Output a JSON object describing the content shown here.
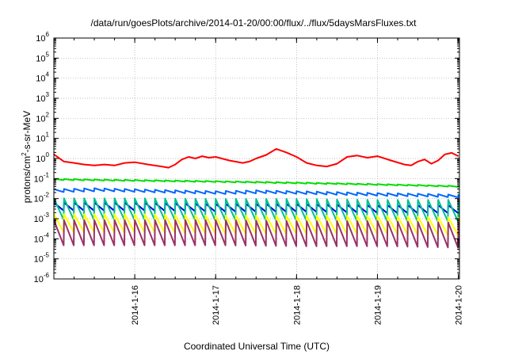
{
  "chart_data": {
    "type": "line",
    "title": "/data/run/goesPlots/archive/2014-01-20/00:00/flux/../flux/5daysMarsFluxes.txt",
    "xlabel": "Coordinated Universal Time (UTC)",
    "ylabel_pre": "protons/cm",
    "ylabel_sup": "2",
    "ylabel_post": "-s-sr-MeV",
    "xlim": [
      "2014-01-15 00:00",
      "2014-01-20 00:20"
    ],
    "ylim": [
      1e-06,
      1000000.0
    ],
    "yscale": "log",
    "grid": true,
    "legend": "none",
    "x_ticks": [
      "2014-1-16",
      "2014-1-17",
      "2014-1-18",
      "2014-1-19",
      "2014-1-20"
    ],
    "y_ticks": [
      {
        "base": "10",
        "exp": "-6"
      },
      {
        "base": "10",
        "exp": "-5"
      },
      {
        "base": "10",
        "exp": "-4"
      },
      {
        "base": "10",
        "exp": "-3"
      },
      {
        "base": "10",
        "exp": "-2"
      },
      {
        "base": "10",
        "exp": "-1"
      },
      {
        "base": "10",
        "exp": "0"
      },
      {
        "base": "10",
        "exp": "1"
      },
      {
        "base": "10",
        "exp": "2"
      },
      {
        "base": "10",
        "exp": "3"
      },
      {
        "base": "10",
        "exp": "4"
      },
      {
        "base": "10",
        "exp": "5"
      },
      {
        "base": "10",
        "exp": "6"
      }
    ],
    "series": [
      {
        "color": "#ff0000",
        "points": [
          [
            "2014-01-15 00:00",
            1.6
          ],
          [
            "2014-01-15 03:00",
            0.7
          ],
          [
            "2014-01-15 06:00",
            0.6
          ],
          [
            "2014-01-15 09:00",
            0.5
          ],
          [
            "2014-01-15 12:00",
            0.45
          ],
          [
            "2014-01-15 15:00",
            0.5
          ],
          [
            "2014-01-15 18:00",
            0.45
          ],
          [
            "2014-01-15 21:00",
            0.6
          ],
          [
            "2014-01-16 00:00",
            0.65
          ],
          [
            "2014-01-16 04:00",
            0.5
          ],
          [
            "2014-01-16 08:00",
            0.4
          ],
          [
            "2014-01-16 10:00",
            0.35
          ],
          [
            "2014-01-16 12:00",
            0.5
          ],
          [
            "2014-01-16 14:00",
            0.9
          ],
          [
            "2014-01-16 16:00",
            1.2
          ],
          [
            "2014-01-16 18:00",
            1.0
          ],
          [
            "2014-01-16 20:00",
            1.3
          ],
          [
            "2014-01-16 22:00",
            1.1
          ],
          [
            "2014-01-17 00:00",
            1.2
          ],
          [
            "2014-01-17 04:00",
            0.8
          ],
          [
            "2014-01-17 08:00",
            0.6
          ],
          [
            "2014-01-17 10:00",
            0.7
          ],
          [
            "2014-01-17 12:00",
            1.0
          ],
          [
            "2014-01-17 15:00",
            1.5
          ],
          [
            "2014-01-17 18:00",
            3.0
          ],
          [
            "2014-01-17 21:00",
            2.0
          ],
          [
            "2014-01-18 00:00",
            1.2
          ],
          [
            "2014-01-18 03:00",
            0.6
          ],
          [
            "2014-01-18 06:00",
            0.45
          ],
          [
            "2014-01-18 09:00",
            0.4
          ],
          [
            "2014-01-18 12:00",
            0.55
          ],
          [
            "2014-01-18 15:00",
            1.2
          ],
          [
            "2014-01-18 18:00",
            1.4
          ],
          [
            "2014-01-18 21:00",
            1.1
          ],
          [
            "2014-01-19 00:00",
            1.3
          ],
          [
            "2014-01-19 04:00",
            0.8
          ],
          [
            "2014-01-19 08:00",
            0.5
          ],
          [
            "2014-01-19 10:00",
            0.45
          ],
          [
            "2014-01-19 12:00",
            0.7
          ],
          [
            "2014-01-19 14:00",
            0.9
          ],
          [
            "2014-01-19 16:00",
            0.55
          ],
          [
            "2014-01-19 18:00",
            0.8
          ],
          [
            "2014-01-19 20:00",
            1.6
          ],
          [
            "2014-01-19 22:00",
            1.9
          ],
          [
            "2014-01-20 00:00",
            1.3
          ]
        ]
      },
      {
        "color": "#00dd00",
        "points": [
          [
            "2014-01-15 00:00",
            0.09
          ],
          [
            "2014-01-15 12:00",
            0.085
          ],
          [
            "2014-01-16 00:00",
            0.08
          ],
          [
            "2014-01-16 12:00",
            0.075
          ],
          [
            "2014-01-17 00:00",
            0.07
          ],
          [
            "2014-01-17 12:00",
            0.065
          ],
          [
            "2014-01-18 00:00",
            0.06
          ],
          [
            "2014-01-18 12:00",
            0.055
          ],
          [
            "2014-01-19 00:00",
            0.05
          ],
          [
            "2014-01-19 12:00",
            0.045
          ],
          [
            "2014-01-20 00:00",
            0.04
          ]
        ],
        "sawtooth": 1.15
      },
      {
        "color": "#0066ff",
        "points": [
          [
            "2014-01-15 00:00",
            0.025
          ],
          [
            "2014-01-15 12:00",
            0.028
          ],
          [
            "2014-01-16 00:00",
            0.025
          ],
          [
            "2014-01-16 12:00",
            0.022
          ],
          [
            "2014-01-17 00:00",
            0.02
          ],
          [
            "2014-01-17 12:00",
            0.022
          ],
          [
            "2014-01-18 00:00",
            0.02
          ],
          [
            "2014-01-18 12:00",
            0.018
          ],
          [
            "2014-01-19 00:00",
            0.016
          ],
          [
            "2014-01-19 12:00",
            0.015
          ],
          [
            "2014-01-20 00:00",
            0.013
          ]
        ],
        "sawtooth": 1.4
      },
      {
        "color": "#0000dd",
        "points": [
          [
            "2014-01-15 00:00",
            0.004
          ],
          [
            "2014-01-16 00:00",
            0.004
          ],
          [
            "2014-01-17 00:00",
            0.0035
          ],
          [
            "2014-01-18 00:00",
            0.0035
          ],
          [
            "2014-01-19 00:00",
            0.003
          ],
          [
            "2014-01-20 00:00",
            0.003
          ]
        ],
        "sawtooth": 2.5
      },
      {
        "color": "#00c090",
        "points": [
          [
            "2014-01-15 00:00",
            0.003
          ],
          [
            "2014-01-16 00:00",
            0.003
          ],
          [
            "2014-01-17 00:00",
            0.0028
          ],
          [
            "2014-01-18 00:00",
            0.0028
          ],
          [
            "2014-01-19 00:00",
            0.0025
          ],
          [
            "2014-01-20 00:00",
            0.0025
          ]
        ],
        "sawtooth": 12
      },
      {
        "color": "#ffff00",
        "points": [
          [
            "2014-01-15 00:00",
            0.0006
          ],
          [
            "2014-01-16 00:00",
            0.0006
          ],
          [
            "2014-01-17 00:00",
            0.0005
          ],
          [
            "2014-01-18 00:00",
            0.0005
          ],
          [
            "2014-01-19 00:00",
            0.0005
          ],
          [
            "2014-01-20 00:00",
            0.0004
          ]
        ],
        "sawtooth": 8
      },
      {
        "color": "#993366",
        "points": [
          [
            "2014-01-15 00:00",
            0.0002
          ],
          [
            "2014-01-16 00:00",
            0.0002
          ],
          [
            "2014-01-17 00:00",
            0.0002
          ],
          [
            "2014-01-18 00:00",
            0.00018
          ],
          [
            "2014-01-19 00:00",
            0.00018
          ],
          [
            "2014-01-20 00:00",
            0.00015
          ]
        ],
        "sawtooth": 18
      }
    ]
  }
}
